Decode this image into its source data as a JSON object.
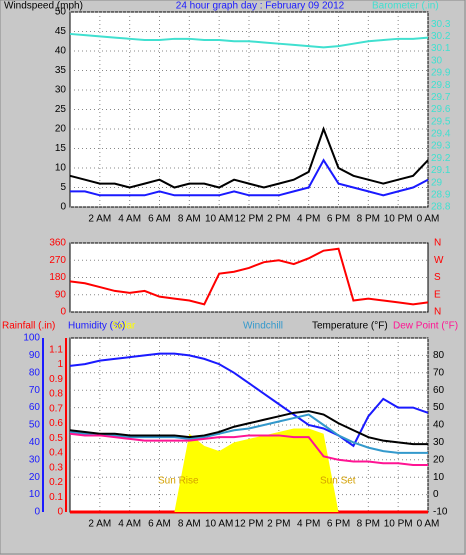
{
  "chart_data": [
    {
      "type": "line",
      "title": "24 hour graph day : February 09 2012",
      "y_label": "Windspeed (mph)",
      "y2_label": "Barometer (.in)",
      "x": [
        0,
        1,
        2,
        3,
        4,
        5,
        6,
        7,
        8,
        9,
        10,
        11,
        12,
        13,
        14,
        15,
        16,
        17,
        18,
        19,
        20,
        21,
        22,
        23,
        24
      ],
      "xlim": [
        0,
        24
      ],
      "xticks": [
        {
          "value": 2,
          "label": "2 AM"
        },
        {
          "value": 4,
          "label": "4 AM"
        },
        {
          "value": 6,
          "label": "6 AM"
        },
        {
          "value": 8,
          "label": "8 AM"
        },
        {
          "value": 10,
          "label": "10 AM"
        },
        {
          "value": 12,
          "label": "12 PM"
        },
        {
          "value": 14,
          "label": "2 PM"
        },
        {
          "value": 16,
          "label": "4 PM"
        },
        {
          "value": 18,
          "label": "6 PM"
        },
        {
          "value": 20,
          "label": "8 PM"
        },
        {
          "value": 22,
          "label": "10 PM"
        },
        {
          "value": 24,
          "label": "0 AM"
        }
      ],
      "ylim": [
        0,
        50
      ],
      "yticks": [
        0,
        5,
        10,
        15,
        20,
        25,
        30,
        35,
        40,
        45,
        50
      ],
      "y2lim": [
        28.8,
        30.4
      ],
      "y2ticks": [
        28.8,
        28.9,
        29,
        29.1,
        29.2,
        29.3,
        29.4,
        29.5,
        29.6,
        29.7,
        29.8,
        29.9,
        30,
        30.1,
        30.2,
        30.3
      ],
      "grid": true,
      "series": [
        {
          "color": "#000000",
          "values": [
            8,
            7,
            6,
            6,
            5,
            6,
            7,
            5,
            6,
            6,
            5,
            7,
            6,
            5,
            6,
            7,
            9,
            20,
            10,
            8,
            7,
            6,
            7,
            8,
            12
          ]
        },
        {
          "color": "#1a1aff",
          "values": [
            4,
            4,
            3,
            3,
            3,
            3,
            4,
            3,
            3,
            3,
            3,
            4,
            3,
            3,
            3,
            4,
            5,
            12,
            6,
            5,
            4,
            3,
            4,
            5,
            7
          ]
        },
        {
          "color": "#40e0d0",
          "axis": "y2",
          "values": [
            30.22,
            30.21,
            30.2,
            30.19,
            30.18,
            30.17,
            30.17,
            30.18,
            30.18,
            30.17,
            30.17,
            30.16,
            30.16,
            30.15,
            30.14,
            30.13,
            30.12,
            30.11,
            30.12,
            30.14,
            30.16,
            30.17,
            30.18,
            30.18,
            30.19
          ]
        }
      ]
    },
    {
      "type": "line",
      "x": [
        0,
        1,
        2,
        3,
        4,
        5,
        6,
        7,
        8,
        9,
        10,
        11,
        12,
        13,
        14,
        15,
        16,
        17,
        18,
        19,
        20,
        21,
        22,
        23,
        24
      ],
      "xlim": [
        0,
        24
      ],
      "ylim": [
        0,
        360
      ],
      "yticks": [
        0,
        90,
        180,
        270,
        360
      ],
      "y2lim": [
        0,
        360
      ],
      "y2ticks": [
        {
          "value": 0,
          "label": "N"
        },
        {
          "value": 90,
          "label": "E"
        },
        {
          "value": 180,
          "label": "S"
        },
        {
          "value": 270,
          "label": "W"
        },
        {
          "value": 360,
          "label": "N"
        }
      ],
      "grid": true,
      "series": [
        {
          "color": "#ff0000",
          "values": [
            160,
            150,
            130,
            110,
            100,
            110,
            80,
            70,
            60,
            40,
            200,
            210,
            230,
            260,
            270,
            250,
            280,
            320,
            330,
            60,
            70,
            60,
            50,
            40,
            50
          ]
        }
      ]
    },
    {
      "type": "line",
      "x": [
        0,
        1,
        2,
        3,
        4,
        5,
        6,
        7,
        8,
        9,
        10,
        11,
        12,
        13,
        14,
        15,
        16,
        17,
        18,
        19,
        20,
        21,
        22,
        23,
        24
      ],
      "xlim": [
        0,
        24
      ],
      "xticks": [
        {
          "value": 2,
          "label": "2 AM"
        },
        {
          "value": 4,
          "label": "4 AM"
        },
        {
          "value": 6,
          "label": "6 AM"
        },
        {
          "value": 8,
          "label": "8 AM"
        },
        {
          "value": 10,
          "label": "10 AM"
        },
        {
          "value": 12,
          "label": "12 PM"
        },
        {
          "value": 14,
          "label": "2 PM"
        },
        {
          "value": 16,
          "label": "4 PM"
        },
        {
          "value": 18,
          "label": "6 PM"
        },
        {
          "value": 20,
          "label": "8 PM"
        },
        {
          "value": 22,
          "label": "10 PM"
        },
        {
          "value": 24,
          "label": "0 AM"
        }
      ],
      "ylim": [
        0,
        100
      ],
      "yticks": [
        0,
        10,
        20,
        30,
        40,
        50,
        60,
        70,
        80,
        90,
        100
      ],
      "y2lim": [
        -10,
        90
      ],
      "y2ticks": [
        -10,
        0,
        10,
        20,
        30,
        40,
        50,
        60,
        70,
        80
      ],
      "y3lim": [
        0,
        1.18
      ],
      "y3ticks": [
        0,
        0.1,
        0.2,
        0.3,
        0.4,
        0.5,
        0.6,
        0.7,
        0.8,
        0.9,
        1,
        1.1
      ],
      "grid": true,
      "annotations": [
        "Sun Rise",
        "Sun Set"
      ],
      "series": [
        {
          "name": "Rainfall (.in)",
          "color": "#ff0000",
          "axis": "y3",
          "values": [
            0,
            0,
            0,
            0,
            0,
            0,
            0,
            0,
            0,
            0,
            0,
            0,
            0,
            0,
            0,
            0,
            0,
            0,
            0,
            0,
            0,
            0,
            0,
            0,
            0
          ]
        },
        {
          "name": "Humidity (%)",
          "color": "#1a1aff",
          "values": [
            84,
            85,
            87,
            88,
            89,
            90,
            91,
            91,
            90,
            88,
            85,
            80,
            74,
            68,
            62,
            56,
            50,
            48,
            44,
            38,
            55,
            65,
            60,
            60,
            57
          ]
        },
        {
          "name": "Solar",
          "color": "#ffff00",
          "area": true,
          "values": [
            0,
            0,
            0,
            0,
            0,
            0,
            0,
            0,
            45,
            38,
            35,
            40,
            42,
            44,
            46,
            48,
            48,
            45,
            0,
            0,
            0,
            0,
            0,
            0,
            0
          ]
        },
        {
          "name": "Windchill",
          "color": "#3399cc",
          "axis": "y2",
          "values": [
            36,
            35,
            34,
            34,
            33,
            33,
            33,
            33,
            32,
            33,
            35,
            37,
            38,
            40,
            42,
            44,
            46,
            40,
            34,
            30,
            27,
            25,
            24,
            24,
            24
          ]
        },
        {
          "name": "Temperature (°F)",
          "color": "#000000",
          "axis": "y2",
          "values": [
            37,
            36,
            35,
            35,
            34,
            34,
            34,
            34,
            33,
            34,
            36,
            39,
            41,
            43,
            45,
            47,
            48,
            46,
            41,
            37,
            33,
            31,
            30,
            29,
            29
          ]
        },
        {
          "name": "Dew Point (°F)",
          "color": "#ff1493",
          "axis": "y2",
          "values": [
            35,
            34,
            34,
            33,
            32,
            31,
            31,
            31,
            31,
            32,
            33,
            33,
            34,
            34,
            34,
            33,
            33,
            22,
            20,
            19,
            19,
            18,
            18,
            17,
            17
          ]
        }
      ]
    }
  ]
}
